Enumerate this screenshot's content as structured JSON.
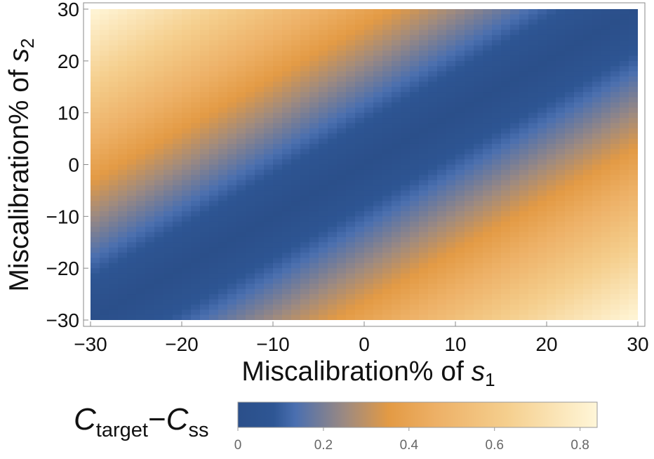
{
  "chart_data": {
    "type": "heatmap",
    "title": "",
    "xlabel": "Miscalibration% of s",
    "xlabel_sub": "1",
    "ylabel": "Miscalibration% of s",
    "ylabel_sub": "2",
    "xlim": [
      -30,
      30
    ],
    "ylim": [
      -30,
      30
    ],
    "x_ticks": [
      "−30",
      "−20",
      "−10",
      "0",
      "10",
      "20",
      "30"
    ],
    "x_tick_values": [
      -30,
      -20,
      -10,
      0,
      10,
      20,
      30
    ],
    "y_ticks": [
      "−30",
      "−20",
      "−10",
      "0",
      "10",
      "20",
      "30"
    ],
    "y_tick_values": [
      -30,
      -20,
      -10,
      0,
      10,
      20,
      30
    ],
    "grid": false,
    "field": {
      "description": "value = |s2_miscal - s1_miscal| scaled; minimum (0) along the line y = x",
      "min_line_slope": 1,
      "min_line_intercept": 0,
      "values_at_corners": {
        "top-left": 0.84,
        "bottom-right": 0.84,
        "top-right": 0.0,
        "bottom-left": 0.0
      }
    },
    "colorbar": {
      "label_main": "C",
      "label_sub1": "target",
      "label_dash": "−",
      "label_main2": "C",
      "label_sub2": "ss",
      "range": [
        0,
        0.84
      ],
      "ticks": [
        "0",
        "0.2",
        "0.4",
        "0.6",
        "0.8"
      ],
      "tick_values": [
        0,
        0.2,
        0.4,
        0.6,
        0.8
      ],
      "placement": "bottom",
      "colors": [
        "#2b4f8a",
        "#4a6fb0",
        "#b08a70",
        "#e8a24a",
        "#f5cf8e",
        "#fff6d8"
      ]
    }
  }
}
